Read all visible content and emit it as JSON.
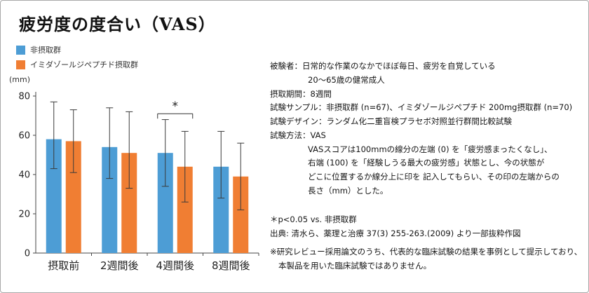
{
  "page": {
    "title": "疲労度の度合い（VAS）"
  },
  "legend": [
    {
      "label": "非摂取群",
      "color": "#4D9DD5"
    },
    {
      "label": "イミダゾールジペプチド摂取群",
      "color": "#F07E33"
    }
  ],
  "chart_data": {
    "type": "bar",
    "title": "疲労度の度合い（VAS）",
    "ylabel": "(mm)",
    "xlabel": "",
    "ylim": [
      0,
      80
    ],
    "yticks": [
      0,
      20,
      40,
      60,
      80
    ],
    "grid": false,
    "legend_position": "top-left",
    "categories": [
      "摂取前",
      "2週間後",
      "4週間後",
      "8週間後"
    ],
    "series": [
      {
        "name": "非摂取群",
        "color": "#4D9DD5",
        "values": [
          58,
          54,
          51,
          44
        ],
        "error_upper": [
          77,
          74,
          68,
          62
        ],
        "error_lower": [
          43,
          38,
          34,
          28
        ]
      },
      {
        "name": "イミダゾールジペプチド摂取群",
        "color": "#F07E33",
        "values": [
          57,
          51,
          44,
          39
        ],
        "error_upper": [
          73,
          72,
          62,
          56
        ],
        "error_lower": [
          41,
          33,
          26,
          22
        ]
      }
    ],
    "significance": {
      "category_index": 2,
      "label": "*",
      "bracket_value": 71
    }
  },
  "info_panel": {
    "lines": [
      "被験者：日常的な作業のなかでほぼ毎日、疲労を自覚している",
      "20～65歳の健常成人",
      "摂取期間：8週間",
      "試験サンプル：非摂取群 (n=67)、イミダゾールジペプチド 200mg摂取群 (n=70)",
      "試験デザイン：ランダム化二重盲検プラセボ対照並行群間比較試験",
      "試験方法：VAS",
      "VASスコアは100mmの線分の左端 (0) を「疲労感まったくなし」、",
      "右端 (100) を「経験しうる最大の疲労感」状態とし、今の状態が",
      "どこに位置するか線分上に印を 記入してもらい、その印の左端からの",
      "長さ（mm）とした。"
    ],
    "footnotes": [
      "＊p<0.05 vs. 非摂取群",
      "出典: 清水ら、薬理と治療 37(3) 255-263.(2009) より一部抜粋作図"
    ],
    "disclaimer": [
      "※研究レビュー採用論文のうち、代表的な臨床試験の結果を事例として提示しており、",
      "本製品を用いた臨床試験ではありません。"
    ]
  }
}
